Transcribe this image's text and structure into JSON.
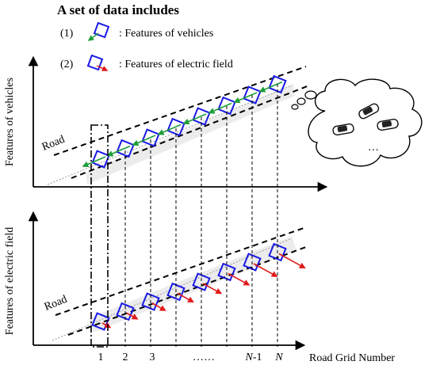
{
  "title": "A set of data includes",
  "legend": {
    "item1_num": "(1)",
    "item1_label": ": Features of vehicles",
    "item2_num": "(2)",
    "item2_label": ": Features of electric field"
  },
  "top_panel": {
    "ylabel": "Features of vehicles",
    "road_label": "Road"
  },
  "bottom_panel": {
    "ylabel": "Features of electric field",
    "road_label": "Road"
  },
  "x_axis": {
    "label": "Road Grid Number",
    "ticks": [
      "1",
      "2",
      "3",
      "……",
      "N-1",
      "N"
    ]
  },
  "colors": {
    "square": "#1a1ae6",
    "vehicle_arrow": "#1f9e3a",
    "field_arrow": "#e21b1b"
  },
  "icons": [
    "cars-thought-cloud-icon"
  ]
}
